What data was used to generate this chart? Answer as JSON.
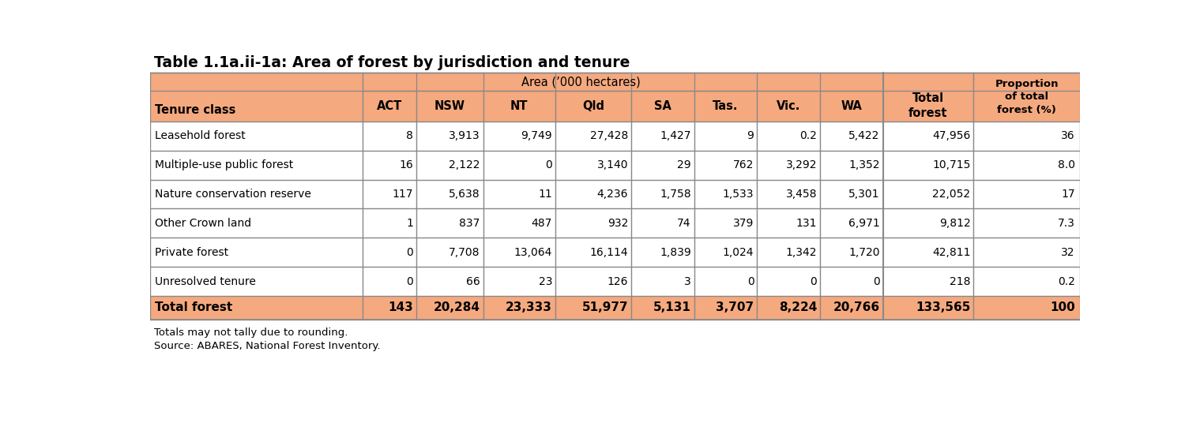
{
  "title": "Table 1.1a.ii-1a: Area of forest by jurisdiction and tenure",
  "header_area": "Area (’000 hectares)",
  "col_headers": [
    "ACT",
    "NSW",
    "NT",
    "Qld",
    "SA",
    "Tas.",
    "Vic.",
    "WA"
  ],
  "rows": [
    {
      "tenure": "Leasehold forest",
      "vals": [
        "8",
        "3,913",
        "9,749",
        "27,428",
        "1,427",
        "9",
        "0.2",
        "5,422"
      ],
      "total": "47,956",
      "prop": "36"
    },
    {
      "tenure": "Multiple-use public forest",
      "vals": [
        "16",
        "2,122",
        "0",
        "3,140",
        "29",
        "762",
        "3,292",
        "1,352"
      ],
      "total": "10,715",
      "prop": "8.0"
    },
    {
      "tenure": "Nature conservation reserve",
      "vals": [
        "117",
        "5,638",
        "11",
        "4,236",
        "1,758",
        "1,533",
        "3,458",
        "5,301"
      ],
      "total": "22,052",
      "prop": "17"
    },
    {
      "tenure": "Other Crown land",
      "vals": [
        "1",
        "837",
        "487",
        "932",
        "74",
        "379",
        "131",
        "6,971"
      ],
      "total": "9,812",
      "prop": "7.3"
    },
    {
      "tenure": "Private forest",
      "vals": [
        "0",
        "7,708",
        "13,064",
        "16,114",
        "1,839",
        "1,024",
        "1,342",
        "1,720"
      ],
      "total": "42,811",
      "prop": "32"
    },
    {
      "tenure": "Unresolved tenure",
      "vals": [
        "0",
        "66",
        "23",
        "126",
        "3",
        "0",
        "0",
        "0"
      ],
      "total": "218",
      "prop": "0.2"
    }
  ],
  "total_row": {
    "tenure": "Total forest",
    "vals": [
      "143",
      "20,284",
      "23,333",
      "51,977",
      "5,131",
      "3,707",
      "8,224",
      "20,766"
    ],
    "total": "133,565",
    "prop": "100"
  },
  "footnotes": [
    "Totals may not tally due to rounding.",
    "Source: ABARES, National Forest Inventory."
  ],
  "salmon": "#F5A97F",
  "white": "#FFFFFF",
  "border": "#888888",
  "black": "#000000"
}
